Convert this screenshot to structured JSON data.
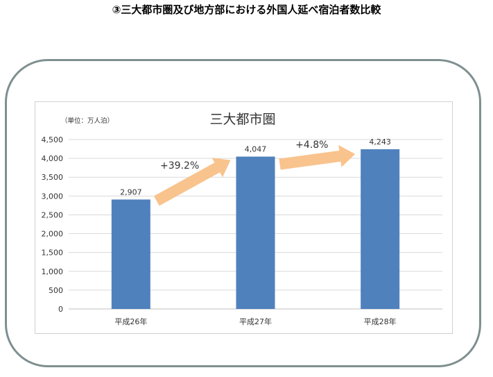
{
  "page": {
    "title": "③三大都市圏及び地方部における外国人延べ宿泊者数比較"
  },
  "chart_data": {
    "type": "bar",
    "title": "三大都市圏",
    "unit_label": "（単位：万人泊）",
    "categories": [
      "平成26年",
      "平成27年",
      "平成28年"
    ],
    "series": [
      {
        "values": [
          2907,
          4047,
          4243
        ]
      }
    ],
    "data_labels": [
      "2,907",
      "4,047",
      "4,243"
    ],
    "ylim": [
      0,
      4500
    ],
    "yticks": [
      0,
      500,
      1000,
      1500,
      2000,
      2500,
      3000,
      3500,
      4000,
      4500
    ],
    "ytick_labels": [
      "0",
      "500",
      "1,000",
      "1,500",
      "2,000",
      "2,500",
      "3,000",
      "3,500",
      "4,000",
      "4,500"
    ],
    "grid": true,
    "annotations": [
      {
        "text": "+39.2%",
        "from": 0,
        "to": 1
      },
      {
        "text": "+4.8%",
        "from": 1,
        "to": 2
      }
    ],
    "colors": {
      "bar": "#4f81bd",
      "arrow": "#f9c38d",
      "grid": "#d9d9d9"
    }
  }
}
